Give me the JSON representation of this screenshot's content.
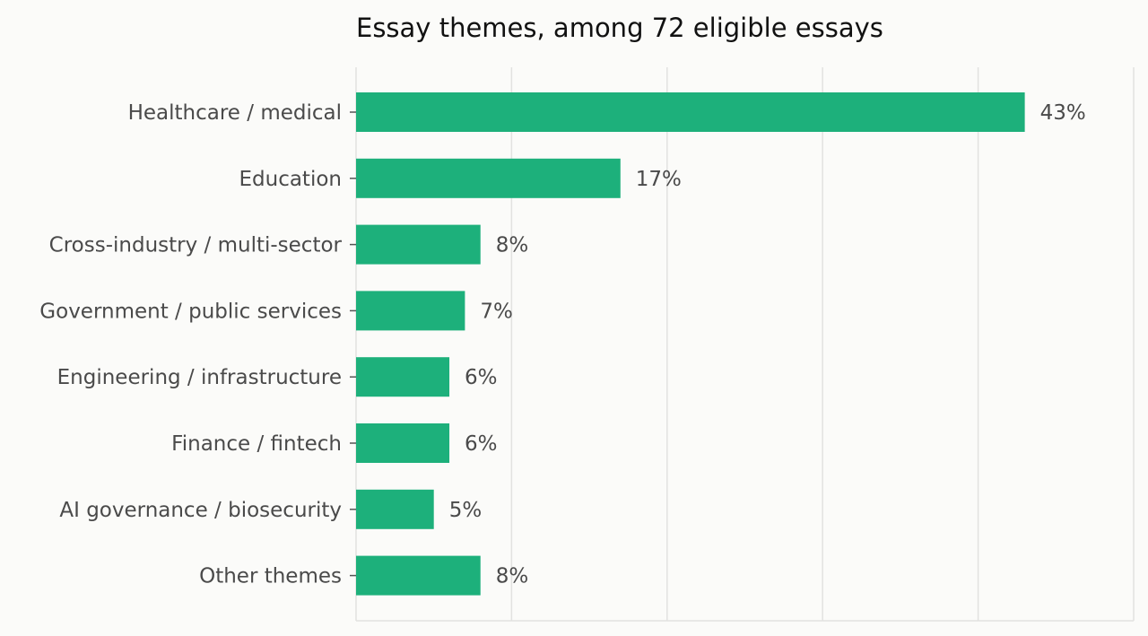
{
  "chart_data": {
    "type": "bar",
    "orientation": "horizontal",
    "title": "Essay themes, among 72 eligible essays",
    "categories": [
      "Healthcare / medical",
      "Education",
      "Cross-industry / multi-sector",
      "Government / public services",
      "Engineering / infrastructure",
      "Finance / fintech",
      "AI governance / biosecurity",
      "Other themes"
    ],
    "values": [
      43,
      17,
      8,
      7,
      6,
      6,
      5,
      8
    ],
    "value_labels": [
      "43%",
      "17%",
      "8%",
      "7%",
      "6%",
      "6%",
      "5%",
      "8%"
    ],
    "xlim": [
      0,
      50
    ],
    "x_ticks": [
      0,
      10,
      20,
      30,
      40,
      50
    ],
    "x_tick_labels_shown": false,
    "grid": "vertical",
    "xlabel": "",
    "ylabel": "",
    "colors": {
      "bar": "#1db07b",
      "grid": "#e2e2e0",
      "label_text": "#4a4a4a",
      "title_text": "#111111",
      "background": "#fbfbf9"
    }
  }
}
